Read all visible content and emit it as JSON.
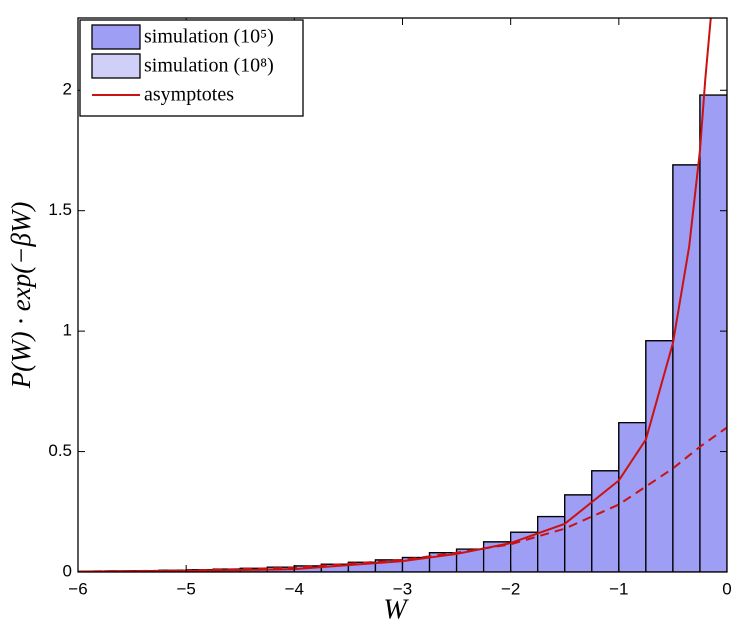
{
  "chart_data": {
    "type": "histogram",
    "xlabel": "W",
    "ylabel": "P(W) · exp(−βW)",
    "bins": [
      -6,
      -5.75,
      -5.5,
      -5.25,
      -5,
      -4.75,
      -4.5,
      -4.25,
      -4,
      -3.75,
      -3.5,
      -3.25,
      -3,
      -2.75,
      -2.5,
      -2.25,
      -2,
      -1.75,
      -1.5,
      -1.25,
      -1,
      -0.75,
      -0.5,
      -0.25,
      0
    ],
    "series": [
      {
        "name": "simulation (10⁸)",
        "color": "#cfcff7",
        "values": [
          0.003,
          0.004,
          0.005,
          0.007,
          0.009,
          0.012,
          0.015,
          0.02,
          0.025,
          0.032,
          0.04,
          0.05,
          0.06,
          0.08,
          0.095,
          0.125,
          0.165,
          0.23,
          0.32,
          0.42,
          0.62,
          0.96,
          1.69,
          1.98
        ]
      },
      {
        "name": "simulation (10⁵)",
        "color": "#9e9ef5",
        "values": [
          0.003,
          0.004,
          0.005,
          0.007,
          0.009,
          0.012,
          0.015,
          0.02,
          0.025,
          0.032,
          0.04,
          0.05,
          0.06,
          0.08,
          0.095,
          0.125,
          0.165,
          0.23,
          0.32,
          0.42,
          0.62,
          0.96,
          1.69,
          1.98
        ]
      },
      {
        "name": "asymptotes",
        "color": "#cc1111",
        "type": "line",
        "x": [
          -6,
          -5,
          -4,
          -3,
          -2.5,
          -2,
          -1.5,
          -1,
          -0.75,
          -0.5,
          -0.35,
          -0.25,
          -0.2,
          -0.15
        ],
        "values": [
          0.002,
          0.004,
          0.012,
          0.045,
          0.075,
          0.12,
          0.2,
          0.38,
          0.55,
          0.95,
          1.35,
          1.75,
          2.05,
          2.3
        ]
      },
      {
        "color": "#cc1111",
        "type": "line",
        "dash": true,
        "x": [
          -6,
          -5,
          -4,
          -3,
          -2.5,
          -2,
          -1.5,
          -1,
          -0.5,
          -0.25,
          0
        ],
        "values": [
          0.002,
          0.006,
          0.018,
          0.05,
          0.08,
          0.115,
          0.18,
          0.28,
          0.43,
          0.52,
          0.6
        ]
      }
    ],
    "legend_order": [
      1,
      0,
      2
    ],
    "xlim": [
      -6,
      0
    ],
    "ylim": [
      0,
      2.3
    ],
    "xticks": [
      {
        "value": -6,
        "label": "−6"
      },
      {
        "value": -5,
        "label": "−5"
      },
      {
        "value": -4,
        "label": "−4"
      },
      {
        "value": -3,
        "label": "−3"
      },
      {
        "value": -2,
        "label": "−2"
      },
      {
        "value": -1,
        "label": "−1"
      },
      0
    ],
    "yticks": [
      0,
      0.5,
      1,
      1.5,
      2
    ],
    "legend": "upper left"
  }
}
